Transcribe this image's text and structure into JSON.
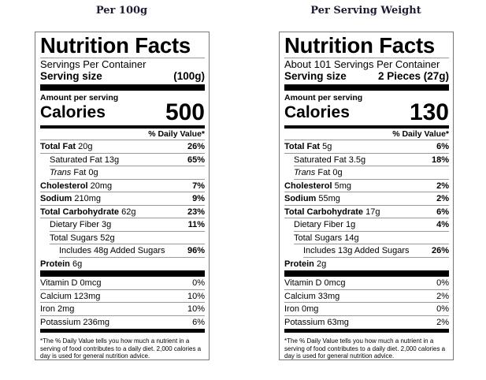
{
  "labels": [
    {
      "heading": "Per 100g",
      "title": "Nutrition Facts",
      "servings_per_container": "Servings Per Container",
      "serving_size_label": "Serving size",
      "serving_size_value": "(100g)",
      "amount_per_serving": "Amount per serving",
      "calories_label": "Calories",
      "calories_value": "500",
      "daily_value_header": "% Daily Value*",
      "nutrients": [
        {
          "name": "Total Fat",
          "amount": "20g",
          "dv": "26%",
          "bold": true,
          "indent": 0
        },
        {
          "name": "Saturated Fat",
          "amount": "13g",
          "dv": "65%",
          "bold": false,
          "indent": 1
        },
        {
          "name": "Trans",
          "name_suffix": "Fat",
          "amount": "0g",
          "dv": "",
          "bold": false,
          "indent": 1,
          "italic": true
        },
        {
          "name": "Cholesterol",
          "amount": "20mg",
          "dv": "7%",
          "bold": true,
          "indent": 0
        },
        {
          "name": "Sodium",
          "amount": "210mg",
          "dv": "9%",
          "bold": true,
          "indent": 0
        },
        {
          "name": "Total Carbohydrate",
          "amount": "62g",
          "dv": "23%",
          "bold": true,
          "indent": 0
        },
        {
          "name": "Dietary Fiber",
          "amount": "3g",
          "dv": "11%",
          "bold": false,
          "indent": 1
        },
        {
          "name": "Total Sugars",
          "amount": "52g",
          "dv": "",
          "bold": false,
          "indent": 1
        },
        {
          "name": "Includes 48g Added Sugars",
          "amount": "",
          "dv": "96%",
          "bold": false,
          "indent": 2
        },
        {
          "name": "Protein",
          "amount": "6g",
          "dv": "",
          "bold": true,
          "indent": 0
        }
      ],
      "vitamins": [
        {
          "name": "Vitamin D 0mcg",
          "dv": "0%"
        },
        {
          "name": "Calcium 123mg",
          "dv": "10%"
        },
        {
          "name": "Iron 2mg",
          "dv": "10%"
        },
        {
          "name": "Potassium 236mg",
          "dv": "6%"
        }
      ],
      "footnote": "*The % Daily Value tells you how much a nutrient in a serving of food contributes to a daily diet. 2,000 calories a day is used for general nutrition advice."
    },
    {
      "heading": "Per Serving Weight",
      "title": "Nutrition Facts",
      "servings_per_container": "About 101 Servings Per Container",
      "serving_size_label": "Serving size",
      "serving_size_value": "2 Pieces (27g)",
      "amount_per_serving": "Amount per serving",
      "calories_label": "Calories",
      "calories_value": "130",
      "daily_value_header": "% Daily Value*",
      "nutrients": [
        {
          "name": "Total Fat",
          "amount": "5g",
          "dv": "6%",
          "bold": true,
          "indent": 0
        },
        {
          "name": "Saturated Fat",
          "amount": "3.5g",
          "dv": "18%",
          "bold": false,
          "indent": 1
        },
        {
          "name": "Trans",
          "name_suffix": "Fat",
          "amount": "0g",
          "dv": "",
          "bold": false,
          "indent": 1,
          "italic": true
        },
        {
          "name": "Cholesterol",
          "amount": "5mg",
          "dv": "2%",
          "bold": true,
          "indent": 0
        },
        {
          "name": "Sodium",
          "amount": "55mg",
          "dv": "2%",
          "bold": true,
          "indent": 0
        },
        {
          "name": "Total Carbohydrate",
          "amount": "17g",
          "dv": "6%",
          "bold": true,
          "indent": 0
        },
        {
          "name": "Dietary Fiber",
          "amount": "1g",
          "dv": "4%",
          "bold": false,
          "indent": 1
        },
        {
          "name": "Total Sugars",
          "amount": "14g",
          "dv": "",
          "bold": false,
          "indent": 1
        },
        {
          "name": "Includes 13g Added Sugars",
          "amount": "",
          "dv": "26%",
          "bold": false,
          "indent": 2
        },
        {
          "name": "Protein",
          "amount": "2g",
          "dv": "",
          "bold": true,
          "indent": 0
        }
      ],
      "vitamins": [
        {
          "name": "Vitamin D 0mcg",
          "dv": "0%"
        },
        {
          "name": "Calcium 33mg",
          "dv": "2%"
        },
        {
          "name": "Iron 0mg",
          "dv": "0%"
        },
        {
          "name": "Potassium 63mg",
          "dv": "2%"
        }
      ],
      "footnote": "*The % Daily Value tells you how much a nutrient in a serving of food contributes to a daily diet. 2,000 calories a day is used for general nutrition advice."
    }
  ]
}
